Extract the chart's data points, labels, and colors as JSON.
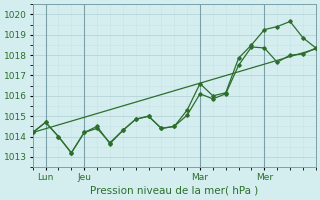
{
  "xlabel": "Pression niveau de la mer( hPa )",
  "bg_color": "#d4eef0",
  "grid_color_major": "#b8d4d8",
  "grid_color_minor": "#c8e0e4",
  "line_color": "#2d6e2d",
  "ylim": [
    1012.5,
    1020.5
  ],
  "xlim": [
    0,
    22
  ],
  "yticks": [
    1013,
    1014,
    1015,
    1016,
    1017,
    1018,
    1019,
    1020
  ],
  "xtick_positions": [
    1,
    4,
    13,
    18
  ],
  "xtick_labels": [
    "Lun",
    "Jeu",
    "Mar",
    "Mer"
  ],
  "vline_positions": [
    1,
    4,
    13,
    18
  ],
  "trend_line": [
    [
      0,
      1014.2
    ],
    [
      22,
      1018.3
    ]
  ],
  "series1_x": [
    0,
    1,
    2,
    3,
    4,
    5,
    6,
    7,
    8,
    9,
    10,
    11,
    12,
    13,
    14,
    15,
    16,
    17,
    18,
    19,
    20,
    21,
    22
  ],
  "series1_y": [
    1014.2,
    1014.7,
    1014.0,
    1013.2,
    1014.2,
    1014.4,
    1013.7,
    1014.3,
    1014.85,
    1015.0,
    1014.4,
    1014.5,
    1015.05,
    1016.1,
    1015.85,
    1016.1,
    1017.5,
    1018.4,
    1018.35,
    1017.65,
    1018.0,
    1018.05,
    1018.35
  ],
  "series2_x": [
    0,
    1,
    2,
    3,
    4,
    5,
    6,
    7,
    8,
    9,
    10,
    11,
    12,
    13,
    14,
    15,
    16,
    17,
    18,
    19,
    20,
    21,
    22
  ],
  "series2_y": [
    1014.2,
    1014.7,
    1014.0,
    1013.2,
    1014.2,
    1014.5,
    1013.65,
    1014.3,
    1014.85,
    1015.0,
    1014.4,
    1014.5,
    1015.3,
    1016.6,
    1016.0,
    1016.15,
    1017.85,
    1018.5,
    1019.25,
    1019.4,
    1019.65,
    1018.85,
    1018.35
  ],
  "tick_fontsize": 6.5,
  "label_fontsize": 7.5
}
